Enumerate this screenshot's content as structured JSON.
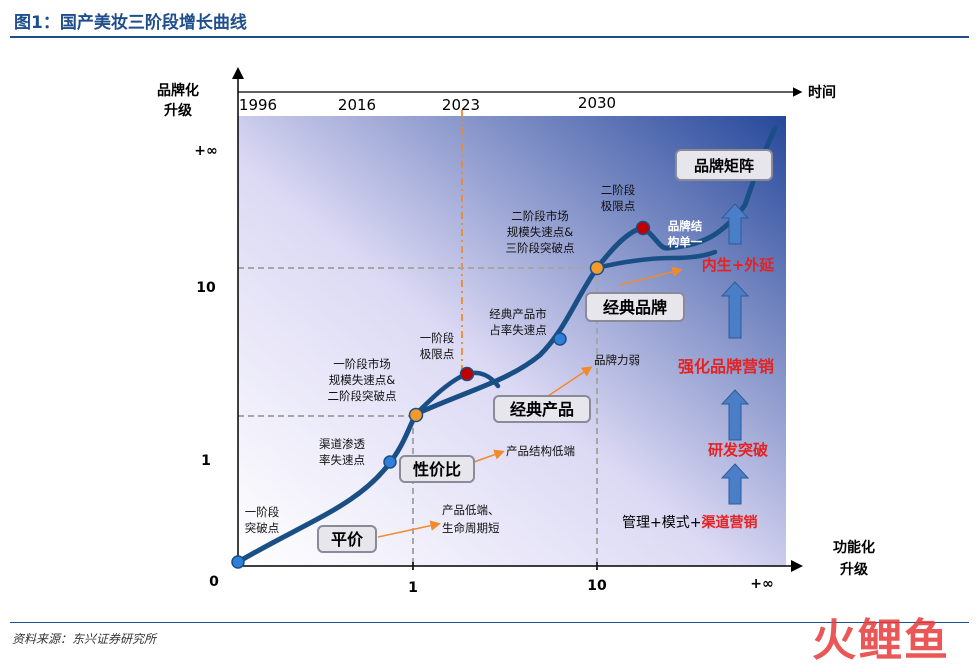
{
  "figure": {
    "title": "图1：国产美妆三阶段增长曲线",
    "source": "资料来源：东兴证券研究所",
    "watermark": "火鲤鱼"
  },
  "colors": {
    "curve": "#1a4f86",
    "accent_red": "#e52222",
    "arrow_fill": "#4a7fc7",
    "dash": "#a6a6a6",
    "dash_orange": "#f08a2c",
    "point_blue": "#2f7fd8",
    "point_orange": "#f39a2c",
    "point_red": "#c00000"
  },
  "axes": {
    "y_title": [
      "品牌化",
      "升级"
    ],
    "x_title": [
      "功能化",
      "升级"
    ],
    "time_title": "时间",
    "origin": "0",
    "x_ticks": [
      "1",
      "10",
      "+∞"
    ],
    "y_ticks": [
      "+∞",
      "10",
      "1"
    ],
    "years": [
      "1996",
      "2016",
      "2023",
      "2030"
    ]
  },
  "boxes": {
    "pingjia": "平价",
    "xingjiabi": "性价比",
    "jingdian_chanpin": "经典产品",
    "jingdian_pinpai": "经典品牌",
    "pinpai_juzhen": "品牌矩阵"
  },
  "annotations": {
    "stage1_break": [
      "一阶段",
      "突破点"
    ],
    "channel": [
      "渠道渗透",
      "率失速点"
    ],
    "stage1_scale": [
      "一阶段市场",
      "规模失速点&",
      "二阶段突破点"
    ],
    "stage1_limit": [
      "一阶段",
      "极限点"
    ],
    "classic_share": [
      "经典产品市",
      "占率失速点"
    ],
    "stage2_scale": [
      "二阶段市场",
      "规模失速点&",
      "三阶段突破点"
    ],
    "stage2_limit": [
      "二阶段",
      "极限点"
    ],
    "brand_structure": [
      "品牌结",
      "构单一"
    ],
    "low_end": [
      "产品低端、",
      "生命周期短"
    ],
    "structure_low": "产品结构低端",
    "brand_weak": "品牌力弱"
  },
  "drivers": {
    "d1_prefix": "管理+模式+",
    "d1_red": "渠道营销",
    "d2": "研发突破",
    "d3": "强化品牌营销",
    "d4": "内生+外延"
  }
}
